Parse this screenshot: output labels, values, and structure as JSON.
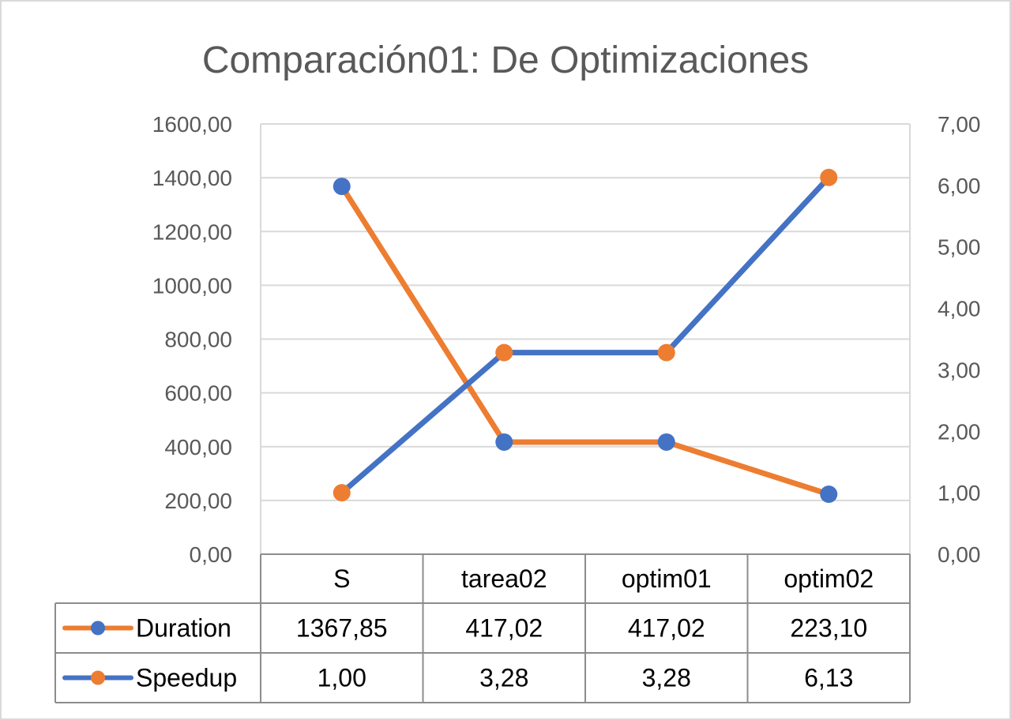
{
  "chart_data": {
    "type": "line",
    "title": "Comparación01: De Optimizaciones",
    "categories": [
      "S",
      "tarea02",
      "optim01",
      "optim02"
    ],
    "y_left": {
      "range": [
        0,
        1600
      ],
      "ticks": [
        "0,00",
        "200,00",
        "400,00",
        "600,00",
        "800,00",
        "1000,00",
        "1200,00",
        "1400,00",
        "1600,00"
      ]
    },
    "y_right": {
      "range": [
        0,
        7
      ],
      "ticks": [
        "0,00",
        "1,00",
        "2,00",
        "3,00",
        "4,00",
        "5,00",
        "6,00",
        "7,00"
      ]
    },
    "grid": true,
    "legend_placement": "data-table",
    "series": [
      {
        "name": "Duration",
        "axis": "left",
        "line_color": "#ED7D31",
        "marker_color": "#4472C4",
        "values": [
          1367.85,
          417.02,
          417.02,
          223.1
        ],
        "labels": [
          "1367,85",
          "417,02",
          "417,02",
          "223,10"
        ]
      },
      {
        "name": "Speedup",
        "axis": "right",
        "line_color": "#4472C4",
        "marker_color": "#ED7D31",
        "values": [
          1.0,
          3.28,
          3.28,
          6.13
        ],
        "labels": [
          "1,00",
          "3,28",
          "3,28",
          "6,13"
        ]
      }
    ]
  }
}
